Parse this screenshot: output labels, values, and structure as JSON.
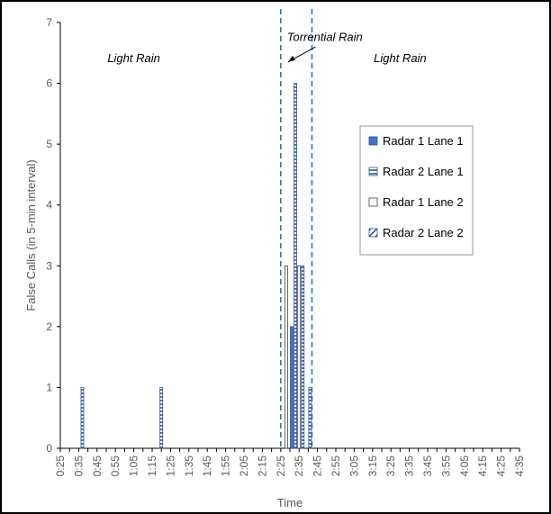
{
  "chart_data": {
    "type": "bar",
    "title": "",
    "xlabel": "Time",
    "ylabel": "False Calls (in 5-min interval)",
    "ylim": [
      0,
      7
    ],
    "yticks": [
      "0",
      "1",
      "2",
      "3",
      "4",
      "5",
      "6",
      "7"
    ],
    "grid": false,
    "legend_position": "right",
    "categories": [
      "0:25",
      "0:35",
      "0:45",
      "0:55",
      "1:05",
      "1:15",
      "1:25",
      "1:35",
      "1:45",
      "1:55",
      "2:05",
      "2:15",
      "2:25",
      "2:35",
      "2:45",
      "2:55",
      "3:05",
      "3:15",
      "3:25",
      "3:35",
      "3:45",
      "3:55",
      "4:05",
      "4:15",
      "4:25",
      "4:35"
    ],
    "series": [
      {
        "name": "Radar 1 Lane 1",
        "color": "#4472c4",
        "pattern": "solid",
        "points": [
          {
            "time": "2:31",
            "value": 2
          }
        ]
      },
      {
        "name": "Radar 2 Lane 1",
        "color": "#2f5597",
        "pattern": "horizontal-lines",
        "points": [
          {
            "time": "0:37",
            "value": 1
          },
          {
            "time": "1:20",
            "value": 1
          },
          {
            "time": "2:33",
            "value": 6
          },
          {
            "time": "2:37",
            "value": 3
          },
          {
            "time": "2:41",
            "value": 1
          }
        ]
      },
      {
        "name": "Radar 1 Lane 2",
        "color": "#ffffff",
        "pattern": "outline",
        "points": [
          {
            "time": "2:28",
            "value": 3
          },
          {
            "time": "2:35",
            "value": 3
          }
        ]
      },
      {
        "name": "Radar 2 Lane 2",
        "color": "#2f5597",
        "pattern": "diagonal",
        "points": []
      }
    ],
    "event_lines": [
      {
        "time": "2:25"
      },
      {
        "time": "2:42"
      }
    ],
    "annotations": [
      {
        "text": "Light Rain",
        "at_time": "1:05",
        "at_value": 6.35
      },
      {
        "text": "Torrential Rain",
        "at_time": "2:49",
        "at_value": 6.7
      },
      {
        "text": "Light Rain",
        "at_time": "3:30",
        "at_value": 6.35
      }
    ]
  }
}
